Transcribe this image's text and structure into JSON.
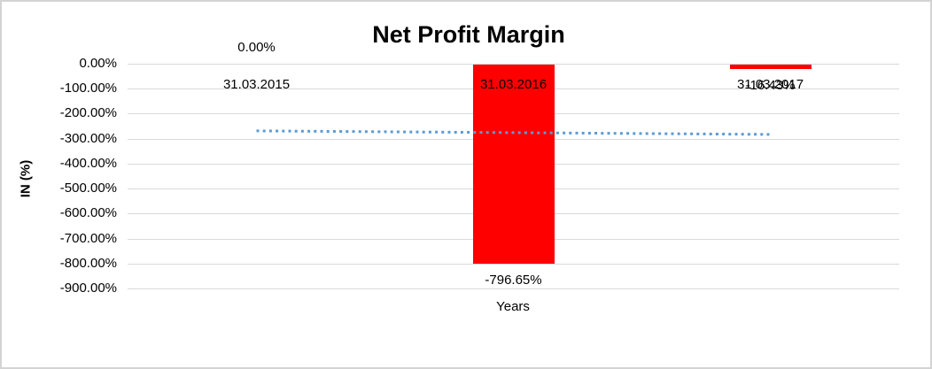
{
  "chart_data": {
    "type": "bar",
    "title": "Net Profit Margin",
    "categories": [
      "31.03.2015",
      "31.03.2016",
      "31.03.2017"
    ],
    "values": [
      0,
      -796.65,
      -16.43
    ],
    "data_labels": [
      "0.00%",
      "-796.65%",
      "-16.43%"
    ],
    "xlabel": "Years",
    "ylabel": "IN (%)",
    "ylim": [
      -900,
      0
    ],
    "ytick_labels": [
      "0.00%",
      "-100.00%",
      "-200.00%",
      "-300.00%",
      "-400.00%",
      "-500.00%",
      "-600.00%",
      "-700.00%",
      "-800.00%",
      "-900.00%"
    ],
    "bar_color": "#FF0000",
    "gridline_color": "#D9D9D9",
    "legend": "none",
    "trendline": {
      "style": "dotted",
      "color": "#5B9BD5",
      "start_value_pct": -269,
      "end_value_pct": -283
    }
  }
}
